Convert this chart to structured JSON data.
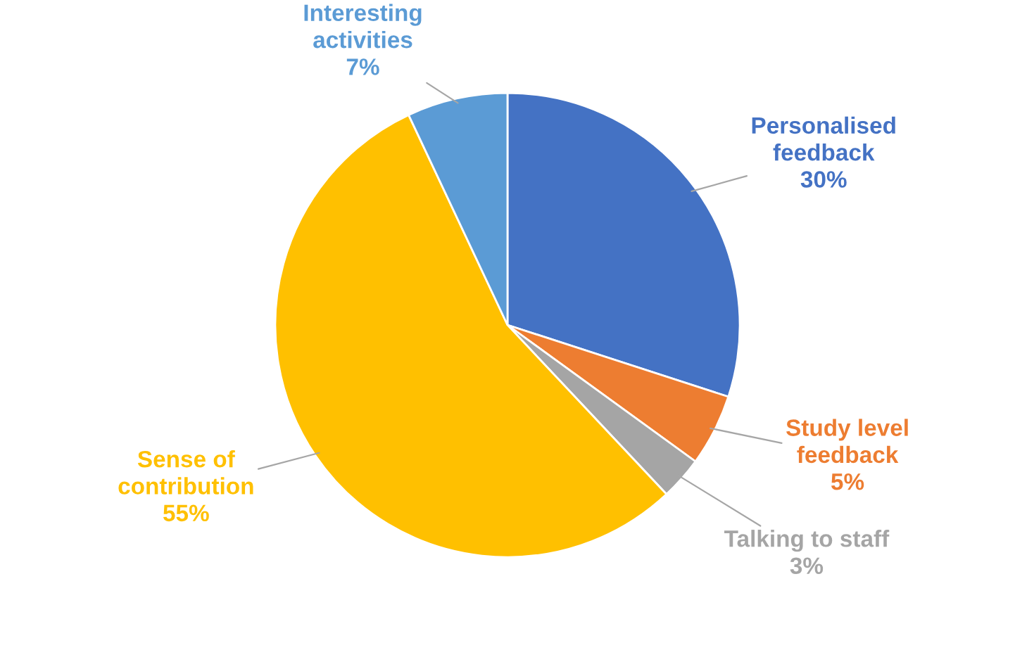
{
  "chart_data": {
    "type": "pie",
    "categories": [
      "Personalised\nfeedback",
      "Study level\nfeedback",
      "Talking to staff",
      "Sense of\ncontribution",
      "Interesting\nactivities"
    ],
    "value_labels": [
      "30%",
      "5%",
      "3%",
      "55%",
      "7%"
    ],
    "values": [
      30,
      5,
      3,
      55,
      7
    ],
    "colors": [
      "#4472c4",
      "#ed7d31",
      "#a5a5a5",
      "#ffc000",
      "#5b9bd5"
    ],
    "legend": false
  }
}
